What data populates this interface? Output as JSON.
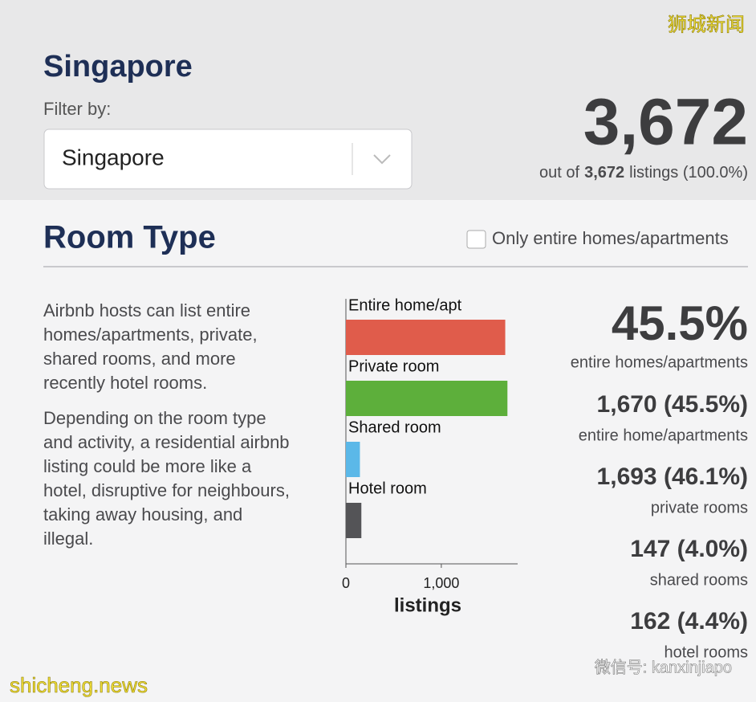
{
  "header": {
    "title": "Singapore",
    "filter_label": "Filter by:",
    "filter_value": "Singapore"
  },
  "summary": {
    "count": "3,672",
    "caption_prefix": "out of",
    "caption_count": "3,672",
    "caption_suffix": "listings (100.0%)"
  },
  "section": {
    "title": "Room Type",
    "checkbox_label": "Only entire homes/apartments"
  },
  "description": [
    [
      "Airbnb hosts can list entire",
      "homes/apartments, private,",
      "shared rooms, and more",
      "recently hotel rooms."
    ],
    [
      "Depending on the room type",
      "and activity, a residential airbnb",
      "listing could be more like a",
      "hotel, disruptive for neighbours,",
      "taking away housing, and",
      "illegal."
    ]
  ],
  "chart_data": {
    "type": "bar",
    "orientation": "horizontal",
    "categories": [
      "Entire home/apt",
      "Private room",
      "Shared room",
      "Hotel room"
    ],
    "values": [
      1670,
      1693,
      147,
      162
    ],
    "colors": [
      "#e05c4b",
      "#5daf3b",
      "#5bb8e8",
      "#545457"
    ],
    "xlim": [
      0,
      1800
    ],
    "xticks": [
      0,
      {
        "value": 1000,
        "label": "1,000"
      }
    ],
    "xlabel": "listings"
  },
  "stats": {
    "headline": "45.5%",
    "headline_caption": "entire homes/apartments",
    "items": [
      {
        "value": "1,670 (45.5%)",
        "caption": "entire home/apartments"
      },
      {
        "value": "1,693 (46.1%)",
        "caption": "private rooms"
      },
      {
        "value": "147 (4.0%)",
        "caption": "shared rooms"
      },
      {
        "value": "162 (4.4%)",
        "caption": "hotel rooms"
      }
    ]
  },
  "watermarks": {
    "top": "狮城新闻",
    "bottom_left": "shicheng.news",
    "bottom_right": "微信号: kanxinjiapo"
  }
}
